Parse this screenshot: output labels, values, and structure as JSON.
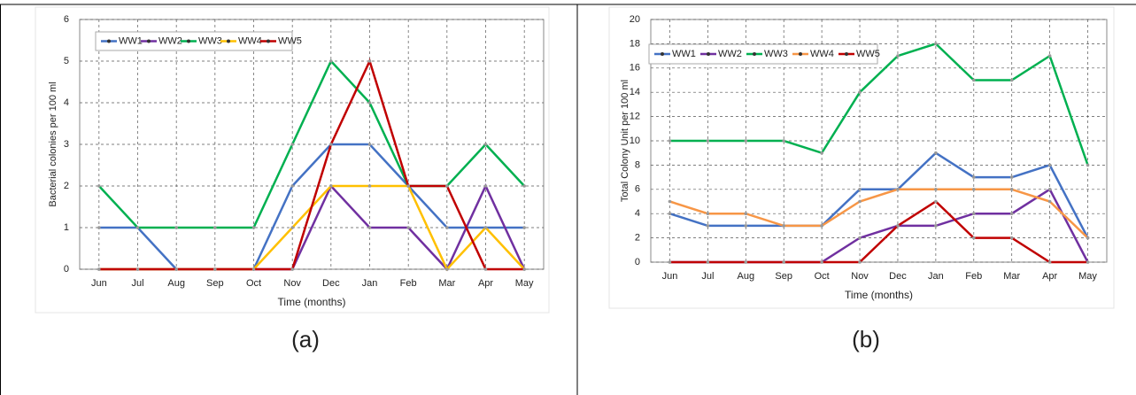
{
  "chart_data": [
    {
      "type": "line",
      "caption": "(a)",
      "x_label": "Time (months)",
      "y_label": "Bacterial colonies per 100 ml",
      "categories": [
        "Jun",
        "Jul",
        "Aug",
        "Sep",
        "Oct",
        "Nov",
        "Dec",
        "Jan",
        "Feb",
        "Mar",
        "Apr",
        "May"
      ],
      "ylim": [
        0,
        6
      ],
      "yticks": [
        0,
        1,
        2,
        3,
        4,
        5,
        6
      ],
      "grid": true,
      "legend": "top-left",
      "series": [
        {
          "name": "WW1",
          "color": "#4472c4",
          "values": [
            1,
            1,
            0,
            0,
            0,
            2,
            3,
            3,
            2,
            1,
            1,
            1
          ]
        },
        {
          "name": "WW2",
          "color": "#7030a0",
          "values": [
            0,
            0,
            0,
            0,
            0,
            0,
            2,
            1,
            1,
            0,
            2,
            0
          ]
        },
        {
          "name": "WW3",
          "color": "#00b050",
          "values": [
            2,
            1,
            1,
            1,
            1,
            3,
            5,
            4,
            2,
            2,
            3,
            2
          ]
        },
        {
          "name": "WW4",
          "color": "#ffc000",
          "values": [
            0,
            0,
            0,
            0,
            0,
            1,
            2,
            2,
            2,
            0,
            1,
            0
          ]
        },
        {
          "name": "WW5",
          "color": "#c00000",
          "values": [
            0,
            0,
            0,
            0,
            0,
            0,
            3,
            5,
            2,
            2,
            0,
            0
          ]
        }
      ]
    },
    {
      "type": "line",
      "caption": "(b)",
      "x_label": "Time (months)",
      "y_label": "Total Colony Unit per 100 ml",
      "categories": [
        "Jun",
        "Jul",
        "Aug",
        "Sep",
        "Oct",
        "Nov",
        "Dec",
        "Jan",
        "Feb",
        "Mar",
        "Apr",
        "May"
      ],
      "ylim": [
        0,
        20
      ],
      "yticks": [
        0,
        2,
        4,
        6,
        8,
        10,
        12,
        14,
        16,
        18,
        20
      ],
      "grid": true,
      "legend": "top-left",
      "series": [
        {
          "name": "WW1",
          "color": "#4472c4",
          "values": [
            4,
            3,
            3,
            3,
            3,
            6,
            6,
            9,
            7,
            7,
            8,
            2
          ]
        },
        {
          "name": "WW2",
          "color": "#7030a0",
          "values": [
            0,
            0,
            0,
            0,
            0,
            2,
            3,
            3,
            4,
            4,
            6,
            0
          ]
        },
        {
          "name": "WW3",
          "color": "#00b050",
          "values": [
            10,
            10,
            10,
            10,
            9,
            14,
            17,
            18,
            15,
            15,
            17,
            8
          ]
        },
        {
          "name": "WW4",
          "color": "#f79646",
          "values": [
            5,
            4,
            4,
            3,
            3,
            5,
            6,
            6,
            6,
            6,
            5,
            2
          ]
        },
        {
          "name": "WW5",
          "color": "#c00000",
          "values": [
            0,
            0,
            0,
            0,
            0,
            0,
            3,
            5,
            2,
            2,
            0,
            0
          ]
        }
      ]
    }
  ]
}
